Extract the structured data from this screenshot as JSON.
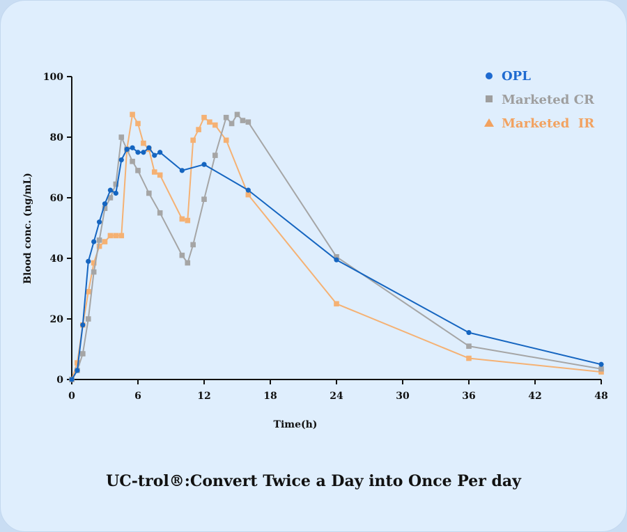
{
  "caption": "UC-trol®:Convert Twice a Day into Once Per day",
  "chart_data": {
    "type": "line",
    "xlabel": "Time(h)",
    "ylabel": "Blood conc. (ng/mL)",
    "xlim": [
      0,
      48
    ],
    "ylim": [
      0,
      100
    ],
    "xticks": [
      0,
      6,
      12,
      18,
      24,
      30,
      36,
      42,
      48
    ],
    "yticks": [
      0,
      20,
      40,
      60,
      80,
      100
    ],
    "grid": false,
    "legend_position": "top-right",
    "series": [
      {
        "name": "OPL",
        "color": "#1565c0",
        "marker": "circle",
        "x": [
          0,
          0.5,
          1,
          1.5,
          2,
          2.5,
          3,
          3.5,
          4,
          4.5,
          5,
          5.5,
          6,
          6.5,
          7,
          7.5,
          8,
          10,
          12,
          16,
          24,
          36,
          48
        ],
        "y": [
          0,
          3,
          18,
          39,
          45.5,
          52,
          58,
          62.5,
          61.5,
          72.5,
          76,
          76.5,
          75,
          75,
          76.5,
          74,
          75,
          69,
          71,
          62.5,
          39.5,
          15.5,
          5
        ]
      },
      {
        "name": "Marketed CR",
        "color": "#a5a5a5",
        "marker": "square",
        "x": [
          0,
          0.5,
          1,
          1.5,
          2,
          2.5,
          3,
          3.5,
          4,
          4.5,
          5,
          5.5,
          6,
          7,
          8,
          10,
          10.5,
          11,
          12,
          13,
          14,
          14.5,
          15,
          15.5,
          16,
          24,
          36,
          48
        ],
        "y": [
          0,
          3,
          8.5,
          20,
          35.5,
          46,
          56.5,
          60,
          64.5,
          80,
          76,
          72,
          69,
          61.5,
          55,
          41,
          38.5,
          44.5,
          59.5,
          74,
          86.5,
          84.5,
          87.5,
          85.5,
          85,
          40.5,
          11,
          3.5
        ]
      },
      {
        "name": "Marketed  IR",
        "color": "#f5b173",
        "marker": "square",
        "x": [
          0,
          0.5,
          1,
          1.5,
          2,
          2.5,
          3,
          3.5,
          4,
          4.5,
          5,
          5.5,
          6,
          6.5,
          7,
          7.5,
          8,
          10,
          10.5,
          11,
          11.5,
          12,
          12.5,
          13,
          14,
          16,
          24,
          36,
          48
        ],
        "y": [
          0,
          5.5,
          18,
          29,
          38.5,
          44,
          45.5,
          47.5,
          47.5,
          47.5,
          76,
          87.5,
          84.5,
          78,
          76,
          68.5,
          67.5,
          53,
          52.5,
          79,
          82.5,
          86.5,
          85,
          84,
          79,
          61,
          25,
          7,
          2.5
        ]
      }
    ]
  },
  "legend": [
    {
      "label": "OPL",
      "color": "#1e6ad0",
      "marker": "circle"
    },
    {
      "label": "Marketed CR",
      "color": "#9e9e9e",
      "marker": "square"
    },
    {
      "label": "Marketed  IR",
      "color": "#f2a260",
      "marker": "triangle"
    }
  ]
}
